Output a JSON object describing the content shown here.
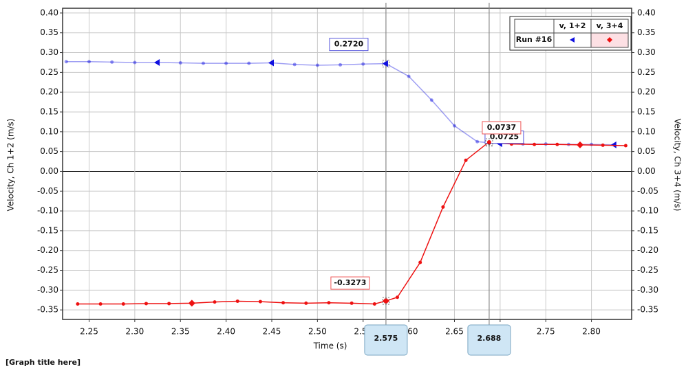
{
  "chart_data": {
    "type": "line",
    "title": "[Graph title here]",
    "x_label": "Time (s)",
    "y_label": "Velocity, Ch 1+2 (m/s)",
    "y2_label": "Velocity, Ch 3+4 (m/s)",
    "xlim": [
      2.221,
      2.844
    ],
    "ylim": [
      -0.374,
      0.412
    ],
    "xticks": [
      2.25,
      {
        "value": 2.3,
        "label": "2.30"
      },
      2.35,
      {
        "value": 2.4,
        "label": "2.40"
      },
      2.45,
      {
        "value": 2.5,
        "label": "2.50"
      },
      2.55,
      {
        "value": 2.6,
        "label": "2.60"
      },
      2.65,
      {
        "value": 2.7,
        "label": "2.70"
      },
      2.75,
      {
        "value": 2.8,
        "label": "2.80"
      }
    ],
    "yticks": [
      {
        "value": 0.4,
        "label": "0.40"
      },
      0.35,
      {
        "value": 0.3,
        "label": "0.30"
      },
      0.25,
      {
        "value": 0.2,
        "label": "0.20"
      },
      0.15,
      {
        "value": 0.1,
        "label": "0.10"
      },
      0.05,
      {
        "value": 0,
        "label": "0.00"
      },
      -0.05,
      {
        "value": -0.1,
        "label": "-0.10"
      },
      -0.15,
      {
        "value": -0.2,
        "label": "-0.20"
      },
      -0.25,
      {
        "value": -0.3,
        "label": "-0.30"
      },
      -0.35
    ],
    "grid": true,
    "legend": {
      "run": "Run #16"
    },
    "series": [
      {
        "name": "v, 1+2",
        "color": "#1010e0",
        "x": [
          2.225,
          2.25,
          2.275,
          2.3,
          2.325,
          2.35,
          2.375,
          2.4,
          2.425,
          2.45,
          2.475,
          2.5,
          2.525,
          2.55,
          2.575,
          2.6,
          2.625,
          2.65,
          2.675,
          2.7,
          2.725,
          2.75,
          2.775,
          2.8,
          2.825
        ],
        "values": [
          0.277,
          0.277,
          0.276,
          0.275,
          0.275,
          0.274,
          0.273,
          0.273,
          0.273,
          0.274,
          0.27,
          0.268,
          0.269,
          0.271,
          0.272,
          0.24,
          0.18,
          0.115,
          0.075,
          0.07,
          0.069,
          0.069,
          0.068,
          0.068,
          0.067
        ]
      },
      {
        "name": "v, 3+4",
        "color": "#ee1111",
        "x": [
          2.2375,
          2.2625,
          2.2875,
          2.3125,
          2.3375,
          2.3625,
          2.3875,
          2.4125,
          2.4375,
          2.4625,
          2.4875,
          2.5125,
          2.5375,
          2.5625,
          2.575,
          2.5875,
          2.6125,
          2.6375,
          2.6625,
          2.6875,
          2.7125,
          2.7375,
          2.7625,
          2.7875,
          2.8125,
          2.8375
        ],
        "values": [
          -0.335,
          -0.335,
          -0.335,
          -0.334,
          -0.334,
          -0.333,
          -0.33,
          -0.328,
          -0.329,
          -0.332,
          -0.333,
          -0.332,
          -0.333,
          -0.335,
          -0.3273,
          -0.318,
          -0.23,
          -0.09,
          0.028,
          0.0737,
          0.069,
          0.068,
          0.068,
          0.067,
          0.066,
          0.065
        ]
      }
    ],
    "cursors": [
      {
        "x": 2.575,
        "readings": [
          {
            "value": 0.272,
            "label": "0.2720"
          },
          -0.3273
        ]
      },
      {
        "x": 2.688,
        "readings": [
          0.0725,
          0.0737
        ]
      }
    ]
  }
}
